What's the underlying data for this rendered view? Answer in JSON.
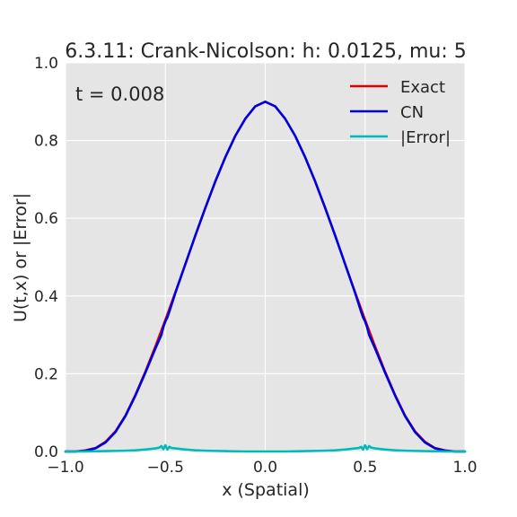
{
  "chart_data": {
    "type": "line",
    "title": "6.3.11: Crank-Nicolson: h: 0.0125, mu: 5",
    "xlabel": "x (Spatial)",
    "ylabel": "U(t,x) or |Error|",
    "annotation": "t = 0.008",
    "xlim": [
      -1.0,
      1.0
    ],
    "ylim": [
      0.0,
      1.0
    ],
    "xticks": [
      "−1.0",
      "−0.5",
      "0.0",
      "0.5",
      "1.0"
    ],
    "yticks": [
      "0.0",
      "0.2",
      "0.4",
      "0.6",
      "0.8",
      "1.0"
    ],
    "xtick_values": [
      -1.0,
      -0.5,
      0.0,
      0.5,
      1.0
    ],
    "ytick_values": [
      0.0,
      0.2,
      0.4,
      0.6,
      0.8,
      1.0
    ],
    "grid": true,
    "legend_position": "top-right",
    "series": [
      {
        "name": "Exact",
        "color": "#dd0000",
        "x": [
          -1.0,
          -0.95,
          -0.9,
          -0.85,
          -0.8,
          -0.75,
          -0.7,
          -0.65,
          -0.6,
          -0.55,
          -0.5,
          -0.45,
          -0.4,
          -0.35,
          -0.3,
          -0.25,
          -0.2,
          -0.15,
          -0.1,
          -0.05,
          0.0,
          0.05,
          0.1,
          0.15,
          0.2,
          0.25,
          0.3,
          0.35,
          0.4,
          0.45,
          0.5,
          0.55,
          0.6,
          0.65,
          0.7,
          0.75,
          0.8,
          0.85,
          0.9,
          0.95,
          1.0
        ],
        "y": [
          0.0,
          0.0,
          0.003,
          0.009,
          0.025,
          0.052,
          0.093,
          0.146,
          0.206,
          0.271,
          0.339,
          0.41,
          0.482,
          0.555,
          0.626,
          0.694,
          0.757,
          0.812,
          0.856,
          0.888,
          0.9,
          0.888,
          0.856,
          0.812,
          0.757,
          0.694,
          0.626,
          0.555,
          0.482,
          0.41,
          0.339,
          0.271,
          0.206,
          0.146,
          0.093,
          0.052,
          0.025,
          0.009,
          0.003,
          0.0,
          0.0
        ]
      },
      {
        "name": "CN",
        "color": "#0000dd",
        "x": [
          -1.0,
          -0.95,
          -0.9,
          -0.85,
          -0.8,
          -0.75,
          -0.7,
          -0.65,
          -0.6,
          -0.55,
          -0.52,
          -0.51,
          -0.5,
          -0.49,
          -0.48,
          -0.45,
          -0.4,
          -0.35,
          -0.3,
          -0.25,
          -0.2,
          -0.15,
          -0.1,
          -0.05,
          0.0,
          0.05,
          0.1,
          0.15,
          0.2,
          0.25,
          0.3,
          0.35,
          0.4,
          0.45,
          0.48,
          0.49,
          0.5,
          0.51,
          0.52,
          0.55,
          0.6,
          0.65,
          0.7,
          0.75,
          0.8,
          0.85,
          0.9,
          0.95,
          1.0
        ],
        "y": [
          0.0,
          0.0,
          0.002,
          0.008,
          0.023,
          0.05,
          0.091,
          0.144,
          0.203,
          0.265,
          0.3,
          0.32,
          0.335,
          0.345,
          0.36,
          0.408,
          0.482,
          0.556,
          0.627,
          0.695,
          0.757,
          0.812,
          0.856,
          0.888,
          0.9,
          0.888,
          0.856,
          0.812,
          0.757,
          0.695,
          0.627,
          0.556,
          0.482,
          0.408,
          0.36,
          0.345,
          0.335,
          0.32,
          0.3,
          0.265,
          0.203,
          0.144,
          0.091,
          0.05,
          0.023,
          0.008,
          0.002,
          0.0,
          0.0
        ]
      },
      {
        "name": "|Error|",
        "color": "#00bbbb",
        "x": [
          -1.0,
          -0.9,
          -0.8,
          -0.7,
          -0.65,
          -0.6,
          -0.55,
          -0.53,
          -0.52,
          -0.51,
          -0.5,
          -0.49,
          -0.48,
          -0.47,
          -0.45,
          -0.4,
          -0.35,
          -0.3,
          -0.2,
          -0.1,
          0.0,
          0.1,
          0.2,
          0.3,
          0.35,
          0.4,
          0.45,
          0.47,
          0.48,
          0.49,
          0.5,
          0.51,
          0.52,
          0.53,
          0.55,
          0.6,
          0.65,
          0.7,
          0.8,
          0.9,
          1.0
        ],
        "y": [
          0.0,
          0.0,
          0.001,
          0.002,
          0.003,
          0.005,
          0.008,
          0.01,
          0.014,
          0.006,
          0.016,
          0.005,
          0.012,
          0.009,
          0.008,
          0.005,
          0.003,
          0.002,
          0.001,
          0.0,
          0.0,
          0.0,
          0.001,
          0.002,
          0.003,
          0.005,
          0.008,
          0.009,
          0.012,
          0.005,
          0.016,
          0.006,
          0.014,
          0.01,
          0.008,
          0.005,
          0.003,
          0.002,
          0.001,
          0.0,
          0.0
        ]
      }
    ]
  }
}
